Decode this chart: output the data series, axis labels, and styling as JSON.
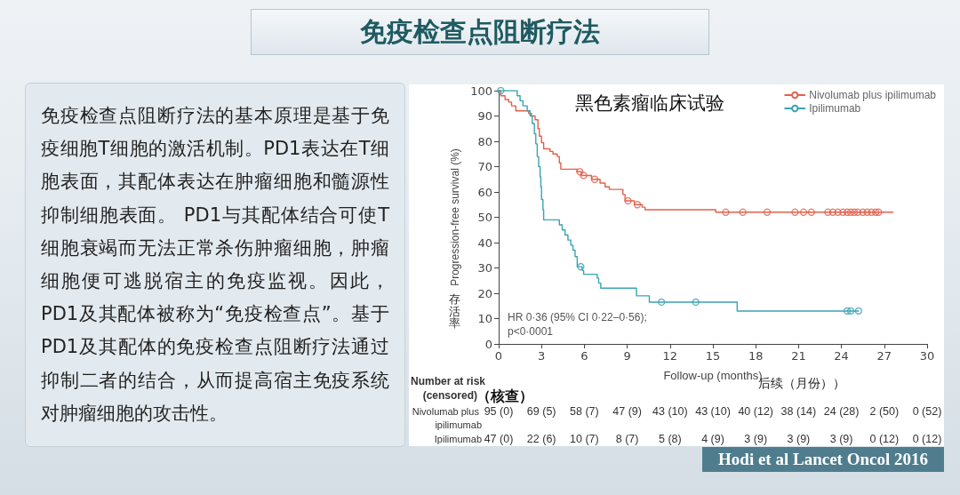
{
  "chart_data": {
    "type": "step",
    "title": "免疫检查点阻断疗法",
    "subtitle": "黑色素瘤临床试验",
    "xlabel": "Follow-up (months)",
    "ylabel": "Progression-free survival (%)",
    "xlim": [
      0,
      30
    ],
    "xticks": [
      0,
      3,
      6,
      9,
      12,
      15,
      18,
      21,
      24,
      27,
      30
    ],
    "ylim": [
      0,
      100
    ],
    "yticks": [
      0,
      10,
      20,
      30,
      40,
      50,
      60,
      70,
      80,
      90,
      100
    ],
    "legend": "top right",
    "series": [
      {
        "name": "Nivolumab plus ipilimumab",
        "color": "#e2604c",
        "x": [
          0,
          0.15,
          0.45,
          0.7,
          0.9,
          1.2,
          2.1,
          2.3,
          2.55,
          2.75,
          2.85,
          3.0,
          3.15,
          3.6,
          3.8,
          4.1,
          4.25,
          4.35,
          5.5,
          5.8,
          6.5,
          7.1,
          7.45,
          7.75,
          8.7,
          8.85,
          9.5,
          10.05,
          10.25,
          15.2,
          27.6
        ],
        "values": [
          100,
          98,
          96.5,
          95.5,
          94,
          92,
          91,
          90,
          88.5,
          85,
          82,
          79.5,
          77,
          76,
          75,
          74,
          71.5,
          69,
          68,
          66.5,
          65,
          63.5,
          62,
          61,
          59,
          56.5,
          55,
          54,
          53,
          52,
          52
        ]
      },
      {
        "name": "Ipilimumab",
        "color": "#3ba3b3",
        "x": [
          0,
          1.3,
          1.5,
          1.7,
          2.0,
          2.2,
          2.35,
          2.5,
          2.6,
          2.7,
          2.8,
          2.9,
          2.95,
          3.0,
          3.1,
          3.15,
          4.25,
          4.45,
          4.65,
          4.85,
          5.05,
          5.2,
          5.35,
          5.5,
          5.85,
          5.95,
          6.9,
          7.0,
          7.15,
          9.65,
          10.55,
          16.7,
          25.2
        ],
        "values": [
          100,
          98,
          96,
          94,
          92,
          90,
          87,
          83,
          79,
          74,
          70,
          66,
          62,
          57,
          53,
          49,
          47,
          45,
          43,
          41,
          39,
          37,
          34.5,
          30.5,
          29,
          27.5,
          26,
          24,
          22,
          19,
          16.5,
          13,
          13
        ]
      },
      {
        "type": "scatter",
        "marker": "circle",
        "color": "#e2604c",
        "x": [
          5.68,
          5.95,
          6.72,
          9.06,
          9.71,
          15.9,
          17.1,
          18.8,
          20.75,
          21.35,
          21.9,
          23.05,
          23.4,
          23.75,
          24.1,
          24.4,
          24.65,
          24.9,
          25.15,
          25.5,
          25.8,
          26.1,
          26.4,
          26.6
        ],
        "values": [
          68,
          66.5,
          65,
          56.5,
          55,
          52,
          52,
          52,
          52,
          52,
          52,
          52,
          52,
          52,
          52,
          52,
          52,
          52,
          52,
          52,
          52,
          52,
          52,
          52
        ]
      },
      {
        "type": "scatter",
        "marker": "circle",
        "color": "#3ba3b3",
        "x": [
          0.15,
          5.75,
          11.4,
          13.8,
          24.4,
          24.65,
          25.2
        ],
        "values": [
          100,
          30.5,
          16.5,
          16.5,
          13,
          13,
          13
        ]
      }
    ],
    "annotations": [
      "免疫检查点阻断疗法的基本原理是基于免疫细胞T细胞的激活机制。PD1表达在T细胞表面，其配体表达在肿瘤细胞和髓源性抑制细胞表面。 PD1与其配体结合可使T细胞衰竭而无法正常杀伤肿瘤细胞，肿瘤细胞便可逃脱宿主的免疫监视。因此，PD1及其配体被称为“免疫检查点”。基于PD1及其配体的免疫检查点阻断疗法通过抑制二者的结合，从而提高宿主免疫系统对肿瘤细胞的攻击性。",
      "HR 0·36 (95% CI 0·22–0·56);\np<0·0001",
      "存活率",
      "后续（月份））",
      "Number at risk",
      "(censored)",
      "（核查）",
      "Nivolumab plus ipilimumab",
      "95 (0)",
      "69 (5)",
      "58 (7)",
      "47 (9)",
      "43 (10)",
      "43 (10)",
      "40 (12)",
      "38 (14)",
      "24 (28)",
      "2 (50)",
      "0 (52)",
      "Ipilimumab",
      "47 (0)",
      "22 (6)",
      "10 (7)",
      "8 (7)",
      "5 (8)",
      "4 (9)",
      "3 (9)",
      "3 (9)",
      "3 (9)",
      "0 (12)",
      "0 (12)",
      "Hodi et al Lancet Oncol 2016"
    ]
  }
}
